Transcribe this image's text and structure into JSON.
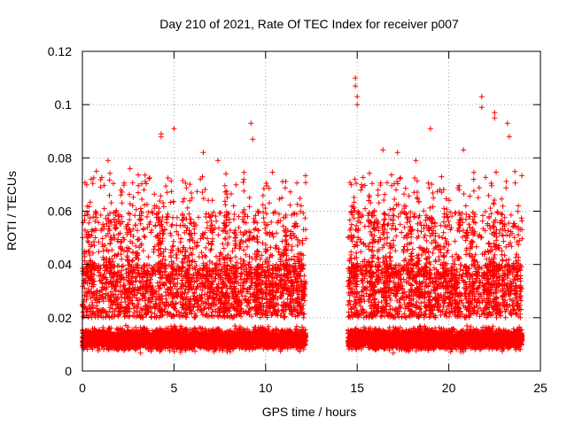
{
  "chart_data": {
    "type": "scatter",
    "title": "Day 210 of 2021, Rate Of TEC Index for receiver p007",
    "xlabel": "GPS time / hours",
    "ylabel": "ROTI / TECUs",
    "xlim": [
      0,
      25
    ],
    "ylim": [
      0,
      0.12
    ],
    "xticks": [
      0,
      5,
      10,
      15,
      20,
      25
    ],
    "xtick_labels": [
      "0",
      "5",
      "10",
      "15",
      "20",
      "25"
    ],
    "yticks": [
      0,
      0.02,
      0.04,
      0.06,
      0.08,
      0.1,
      0.12
    ],
    "ytick_labels": [
      "0",
      "0.02",
      "0.04",
      "0.06",
      "0.08",
      "0.1",
      "0.12"
    ],
    "grid": true,
    "marker": "+",
    "series": [
      {
        "name": "ROTI",
        "color": "#ff0000",
        "segments": [
          {
            "x_start": 0.0,
            "x_end": 12.2
          },
          {
            "x_start": 14.5,
            "x_end": 24.0
          }
        ],
        "notable_points": [
          {
            "x": 1.4,
            "y": 0.079
          },
          {
            "x": 2.6,
            "y": 0.076
          },
          {
            "x": 4.3,
            "y": 0.089
          },
          {
            "x": 4.3,
            "y": 0.088
          },
          {
            "x": 5.0,
            "y": 0.091
          },
          {
            "x": 6.6,
            "y": 0.082
          },
          {
            "x": 7.4,
            "y": 0.079
          },
          {
            "x": 9.2,
            "y": 0.093
          },
          {
            "x": 9.3,
            "y": 0.087
          },
          {
            "x": 14.9,
            "y": 0.11
          },
          {
            "x": 14.9,
            "y": 0.107
          },
          {
            "x": 15.0,
            "y": 0.103
          },
          {
            "x": 15.0,
            "y": 0.1
          },
          {
            "x": 16.4,
            "y": 0.083
          },
          {
            "x": 17.2,
            "y": 0.082
          },
          {
            "x": 18.2,
            "y": 0.079
          },
          {
            "x": 19.0,
            "y": 0.091
          },
          {
            "x": 20.8,
            "y": 0.083
          },
          {
            "x": 21.8,
            "y": 0.103
          },
          {
            "x": 21.8,
            "y": 0.099
          },
          {
            "x": 22.5,
            "y": 0.097
          },
          {
            "x": 22.5,
            "y": 0.095
          },
          {
            "x": 23.2,
            "y": 0.093
          },
          {
            "x": 23.3,
            "y": 0.088
          }
        ]
      }
    ]
  }
}
